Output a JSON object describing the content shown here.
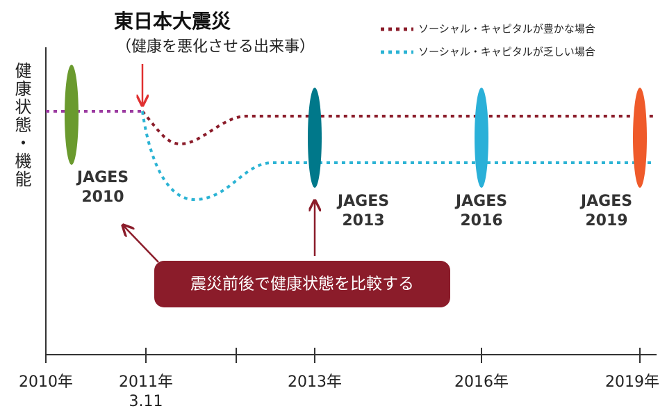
{
  "title": "東日本大震災",
  "subtitle": "（健康を悪化させる出来事）",
  "legend": [
    "ソーシャル・キャピタルが豊かな場合",
    "ソーシャル・キャピタルが乏しい場合"
  ],
  "y_axis_label": "健康状態・機能",
  "surveys": [
    {
      "name": "JAGES",
      "year": "2010"
    },
    {
      "name": "JAGES",
      "year": "2013"
    },
    {
      "name": "JAGES",
      "year": "2016"
    },
    {
      "name": "JAGES",
      "year": "2019"
    }
  ],
  "callout": "震災前後で健康状態を比較する",
  "x_labels": [
    "2010年",
    "2011年",
    "2013年",
    "2016年",
    "2019年"
  ],
  "x_sublabel": "3.11"
}
